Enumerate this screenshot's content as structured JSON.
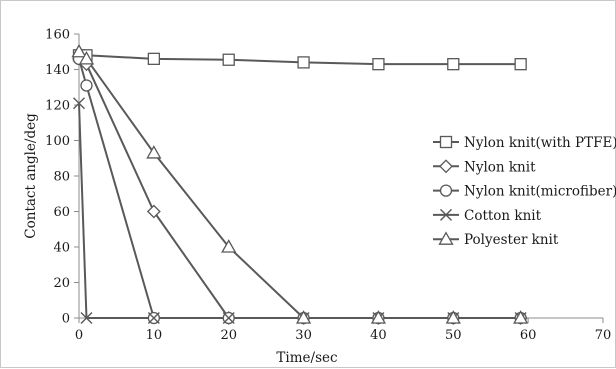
{
  "chart_data": {
    "type": "line",
    "title": "",
    "xlabel": "Time/sec",
    "ylabel": "Contact angle/deg",
    "xlim": [
      0,
      70
    ],
    "ylim": [
      0,
      160
    ],
    "x_ticks": [
      0,
      10,
      20,
      30,
      40,
      50,
      60,
      70
    ],
    "y_ticks": [
      0,
      20,
      40,
      60,
      80,
      100,
      120,
      140,
      160
    ],
    "grid": false,
    "legend_position": "right",
    "line_color": "#595959",
    "series": [
      {
        "name": "Nylon knit(with PTFE)",
        "marker": "square",
        "x": [
          0,
          1,
          10,
          20,
          30,
          40,
          50,
          59
        ],
        "y": [
          148,
          148,
          146,
          145.5,
          144,
          143,
          143,
          143
        ]
      },
      {
        "name": "Nylon knit",
        "marker": "diamond",
        "x": [
          0,
          1,
          10,
          20,
          30,
          40,
          50,
          59
        ],
        "y": [
          146,
          143,
          60,
          0,
          0,
          0,
          0,
          0
        ]
      },
      {
        "name": "Nylon knit(microfiber)",
        "marker": "circle",
        "x": [
          0,
          1,
          10,
          20,
          30,
          40,
          50,
          59
        ],
        "y": [
          146,
          131,
          0,
          0,
          0,
          0,
          0,
          0
        ]
      },
      {
        "name": "Cotton knit",
        "marker": "x",
        "x": [
          0,
          1,
          10,
          20,
          30,
          40,
          50,
          59
        ],
        "y": [
          121,
          0,
          0,
          0,
          0,
          0,
          0,
          0
        ]
      },
      {
        "name": "Polyester knit",
        "marker": "triangle",
        "x": [
          0,
          1,
          10,
          20,
          30,
          40,
          50,
          59
        ],
        "y": [
          150,
          146,
          93,
          40,
          0,
          0,
          0,
          0
        ]
      }
    ]
  }
}
